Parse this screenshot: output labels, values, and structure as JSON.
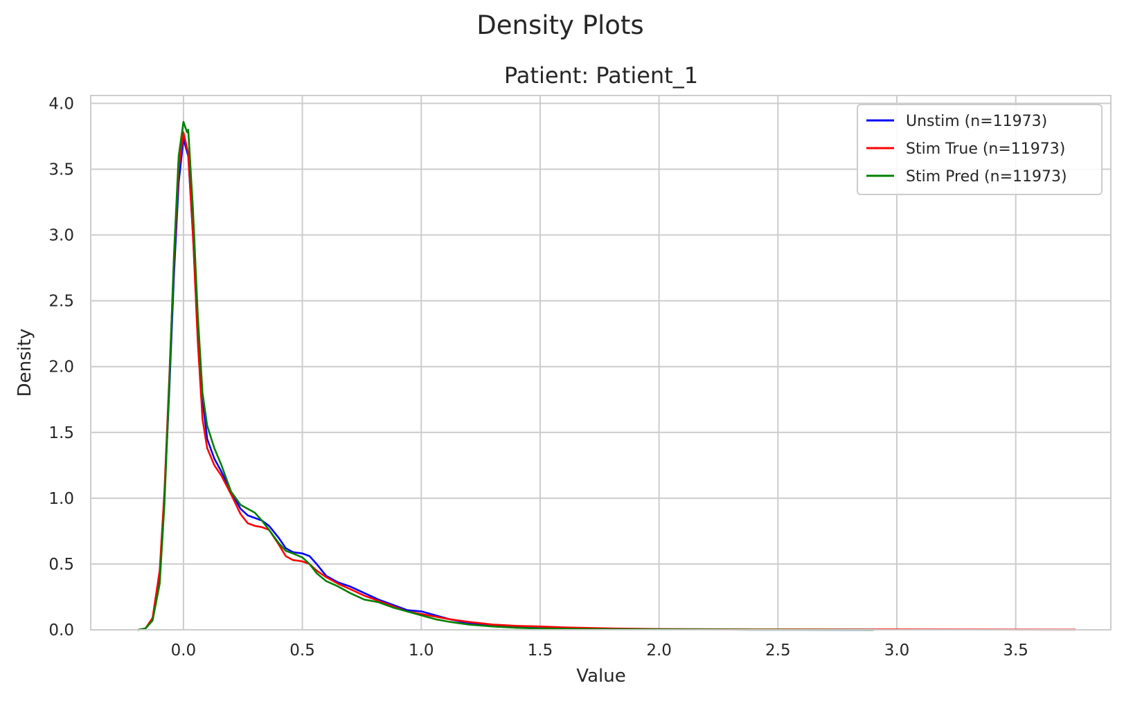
{
  "chart_data": {
    "type": "line",
    "suptitle": "Density Plots",
    "title": "Patient: Patient_1",
    "xlabel": "Value",
    "ylabel": "Density",
    "xlim": [
      -0.39,
      3.9
    ],
    "ylim": [
      0,
      4.06
    ],
    "xticks": [
      0.0,
      0.5,
      1.0,
      1.5,
      2.0,
      2.5,
      3.0,
      3.5
    ],
    "yticks": [
      0.0,
      0.5,
      1.0,
      1.5,
      2.0,
      2.5,
      3.0,
      3.5,
      4.0
    ],
    "grid": true,
    "legend": "top-right",
    "series": [
      {
        "name": "Unstim (n=11973)",
        "color": "#0000ff",
        "points": [
          [
            -0.19,
            0.0
          ],
          [
            -0.16,
            0.01
          ],
          [
            -0.13,
            0.08
          ],
          [
            -0.1,
            0.4
          ],
          [
            -0.08,
            1.0
          ],
          [
            -0.06,
            1.8
          ],
          [
            -0.04,
            2.7
          ],
          [
            -0.02,
            3.4
          ],
          [
            0.0,
            3.73
          ],
          [
            0.02,
            3.6
          ],
          [
            0.04,
            3.0
          ],
          [
            0.06,
            2.3
          ],
          [
            0.08,
            1.75
          ],
          [
            0.1,
            1.45
          ],
          [
            0.13,
            1.3
          ],
          [
            0.16,
            1.2
          ],
          [
            0.2,
            1.05
          ],
          [
            0.24,
            0.92
          ],
          [
            0.27,
            0.87
          ],
          [
            0.3,
            0.85
          ],
          [
            0.33,
            0.83
          ],
          [
            0.36,
            0.79
          ],
          [
            0.4,
            0.7
          ],
          [
            0.43,
            0.62
          ],
          [
            0.46,
            0.59
          ],
          [
            0.5,
            0.58
          ],
          [
            0.53,
            0.56
          ],
          [
            0.56,
            0.5
          ],
          [
            0.6,
            0.41
          ],
          [
            0.65,
            0.36
          ],
          [
            0.7,
            0.33
          ],
          [
            0.76,
            0.28
          ],
          [
            0.82,
            0.23
          ],
          [
            0.88,
            0.19
          ],
          [
            0.94,
            0.15
          ],
          [
            1.0,
            0.14
          ],
          [
            1.06,
            0.11
          ],
          [
            1.12,
            0.08
          ],
          [
            1.2,
            0.05
          ],
          [
            1.3,
            0.03
          ],
          [
            1.4,
            0.02
          ],
          [
            1.5,
            0.015
          ],
          [
            1.6,
            0.01
          ],
          [
            1.8,
            0.005
          ],
          [
            2.0,
            0.003
          ],
          [
            2.4,
            0.001
          ],
          [
            2.9,
            0.0
          ]
        ]
      },
      {
        "name": "Stim True (n=11973)",
        "color": "#ff0000",
        "points": [
          [
            -0.19,
            0.0
          ],
          [
            -0.16,
            0.01
          ],
          [
            -0.13,
            0.09
          ],
          [
            -0.1,
            0.45
          ],
          [
            -0.08,
            1.05
          ],
          [
            -0.06,
            1.9
          ],
          [
            -0.04,
            2.8
          ],
          [
            -0.02,
            3.5
          ],
          [
            0.0,
            3.78
          ],
          [
            0.02,
            3.62
          ],
          [
            0.04,
            3.0
          ],
          [
            0.06,
            2.2
          ],
          [
            0.08,
            1.6
          ],
          [
            0.1,
            1.38
          ],
          [
            0.13,
            1.25
          ],
          [
            0.16,
            1.17
          ],
          [
            0.2,
            1.03
          ],
          [
            0.24,
            0.88
          ],
          [
            0.27,
            0.81
          ],
          [
            0.3,
            0.79
          ],
          [
            0.33,
            0.78
          ],
          [
            0.36,
            0.76
          ],
          [
            0.4,
            0.65
          ],
          [
            0.43,
            0.56
          ],
          [
            0.46,
            0.53
          ],
          [
            0.5,
            0.52
          ],
          [
            0.53,
            0.5
          ],
          [
            0.56,
            0.45
          ],
          [
            0.6,
            0.4
          ],
          [
            0.65,
            0.35
          ],
          [
            0.7,
            0.31
          ],
          [
            0.76,
            0.26
          ],
          [
            0.82,
            0.22
          ],
          [
            0.88,
            0.18
          ],
          [
            0.94,
            0.14
          ],
          [
            1.0,
            0.12
          ],
          [
            1.06,
            0.1
          ],
          [
            1.12,
            0.08
          ],
          [
            1.2,
            0.06
          ],
          [
            1.3,
            0.04
          ],
          [
            1.4,
            0.03
          ],
          [
            1.5,
            0.025
          ],
          [
            1.6,
            0.018
          ],
          [
            1.8,
            0.01
          ],
          [
            2.0,
            0.006
          ],
          [
            2.4,
            0.003
          ],
          [
            3.0,
            0.002
          ],
          [
            3.75,
            0.001
          ]
        ]
      },
      {
        "name": "Stim Pred (n=11973)",
        "color": "#008000",
        "points": [
          [
            -0.19,
            0.0
          ],
          [
            -0.16,
            0.01
          ],
          [
            -0.13,
            0.07
          ],
          [
            -0.1,
            0.35
          ],
          [
            -0.08,
            0.95
          ],
          [
            -0.06,
            1.85
          ],
          [
            -0.04,
            2.85
          ],
          [
            -0.02,
            3.6
          ],
          [
            0.0,
            3.86
          ],
          [
            0.015,
            3.78
          ],
          [
            0.02,
            3.8
          ],
          [
            0.04,
            3.2
          ],
          [
            0.06,
            2.4
          ],
          [
            0.08,
            1.8
          ],
          [
            0.1,
            1.55
          ],
          [
            0.13,
            1.38
          ],
          [
            0.16,
            1.25
          ],
          [
            0.2,
            1.05
          ],
          [
            0.24,
            0.95
          ],
          [
            0.27,
            0.92
          ],
          [
            0.3,
            0.89
          ],
          [
            0.33,
            0.83
          ],
          [
            0.36,
            0.76
          ],
          [
            0.4,
            0.66
          ],
          [
            0.43,
            0.6
          ],
          [
            0.46,
            0.58
          ],
          [
            0.5,
            0.55
          ],
          [
            0.53,
            0.5
          ],
          [
            0.56,
            0.43
          ],
          [
            0.6,
            0.37
          ],
          [
            0.65,
            0.33
          ],
          [
            0.7,
            0.28
          ],
          [
            0.76,
            0.23
          ],
          [
            0.82,
            0.21
          ],
          [
            0.88,
            0.17
          ],
          [
            0.94,
            0.14
          ],
          [
            1.0,
            0.11
          ],
          [
            1.06,
            0.08
          ],
          [
            1.12,
            0.06
          ],
          [
            1.2,
            0.04
          ],
          [
            1.3,
            0.025
          ],
          [
            1.4,
            0.015
          ],
          [
            1.5,
            0.01
          ],
          [
            1.6,
            0.008
          ],
          [
            1.8,
            0.004
          ],
          [
            2.0,
            0.003
          ],
          [
            2.4,
            0.001
          ],
          [
            2.9,
            0.0
          ]
        ]
      }
    ]
  }
}
